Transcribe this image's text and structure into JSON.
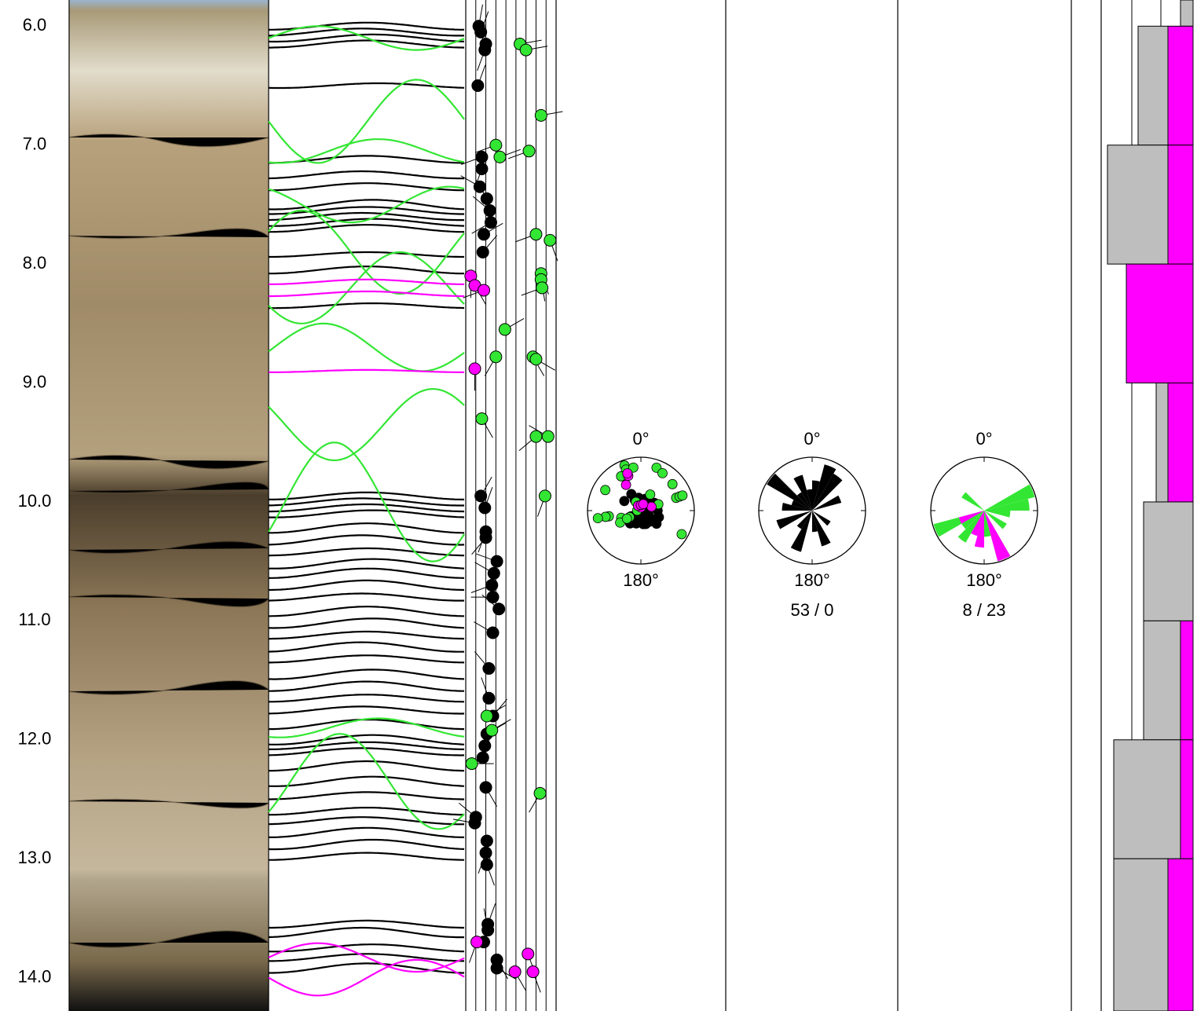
{
  "depth_axis": {
    "range": [
      5.78,
      14.28
    ],
    "ticks": [
      {
        "value": 6,
        "label": "6.0"
      },
      {
        "value": 7,
        "label": "7.0"
      },
      {
        "value": 8,
        "label": "8.0"
      },
      {
        "value": 9,
        "label": "9.0"
      },
      {
        "value": 10,
        "label": "10.0"
      },
      {
        "value": 11,
        "label": "11.0"
      },
      {
        "value": 12,
        "label": "12.0"
      },
      {
        "value": 13,
        "label": "13.0"
      },
      {
        "value": 14,
        "label": "14.0"
      }
    ]
  },
  "surfaces": [
    {
      "color": "#000000",
      "depths": [
        6.0,
        6.05,
        6.1,
        6.15,
        6.5,
        7.12,
        7.25,
        7.35,
        7.5,
        7.55,
        7.6,
        7.65,
        7.7,
        7.92,
        8.05,
        8.35,
        9.95,
        10.0,
        10.05,
        10.1,
        10.22,
        10.32,
        10.42,
        10.52,
        10.6,
        10.7,
        10.8,
        10.92,
        11.02,
        11.12,
        11.22,
        11.32,
        11.45,
        11.55,
        11.65,
        11.75,
        11.87,
        12.0,
        12.05,
        12.1,
        12.22,
        12.35,
        12.47,
        12.6,
        12.68,
        12.78,
        12.88,
        12.98,
        13.55,
        13.62,
        13.75,
        13.83,
        13.92
      ],
      "amplitudes": [
        0.03,
        0.03,
        0.03,
        0.03,
        0.02,
        0.03,
        0.03,
        0.03,
        0.04,
        0.03,
        0.03,
        0.03,
        0.03,
        0.02,
        0.03,
        0.02,
        0.03,
        0.03,
        0.03,
        0.03,
        0.04,
        0.04,
        0.03,
        0.04,
        0.04,
        0.04,
        0.03,
        0.04,
        0.04,
        0.03,
        0.04,
        0.03,
        0.04,
        0.04,
        0.03,
        0.03,
        0.04,
        0.04,
        0.03,
        0.03,
        0.04,
        0.04,
        0.03,
        0.03,
        0.03,
        0.04,
        0.04,
        0.03,
        0.03,
        0.04,
        0.03,
        0.03,
        0.04
      ],
      "azimuths": [
        180,
        170,
        190,
        180,
        200,
        180,
        170,
        180,
        190,
        180,
        170,
        190,
        180,
        180,
        180,
        190,
        180,
        170,
        180,
        190,
        180,
        170,
        180,
        190,
        180,
        180,
        170,
        180,
        190,
        180,
        170,
        180,
        190,
        180,
        180,
        170,
        180,
        190,
        180,
        170,
        180,
        190,
        180,
        180,
        170,
        180,
        190,
        180,
        180,
        170,
        190,
        180,
        180
      ]
    },
    {
      "color": "#33e633",
      "depths": [
        6.1,
        6.8,
        7.05,
        7.5,
        7.9,
        8.2,
        8.7,
        9.35,
        10.0,
        11.9,
        12.35
      ],
      "amplitudes": [
        0.1,
        0.35,
        0.1,
        0.15,
        0.35,
        0.3,
        0.2,
        0.3,
        0.5,
        0.08,
        0.4
      ],
      "azimuths": [
        90,
        270,
        200,
        330,
        60,
        240,
        100,
        300,
        120,
        200,
        130
      ]
    },
    {
      "color": "#ff00ff",
      "depths": [
        8.15,
        8.25,
        8.9,
        13.83,
        14.0
      ],
      "amplitudes": [
        0.02,
        0.02,
        0.01,
        0.12,
        0.15
      ],
      "azimuths": [
        180,
        180,
        180,
        90,
        270
      ]
    }
  ],
  "tadpole_axis": {
    "xlim": [
      0,
      90
    ],
    "ticks": [
      0,
      10,
      20,
      30,
      40,
      50,
      60,
      70,
      80,
      90
    ]
  },
  "tadpoles": [
    {
      "color": "#000000",
      "depths": [
        6.0,
        6.05,
        6.15,
        6.2,
        6.5,
        7.1,
        7.2,
        7.35,
        7.45,
        7.55,
        7.65,
        7.75,
        7.9,
        9.95,
        10.05,
        10.25,
        10.3,
        10.5,
        10.6,
        10.7,
        10.8,
        10.9,
        11.1,
        11.4,
        11.65,
        11.8,
        11.95,
        12.05,
        12.15,
        12.4,
        12.65,
        12.7,
        12.85,
        12.95,
        13.05,
        13.55,
        13.6,
        13.7,
        13.85,
        13.92
      ],
      "dips": [
        13,
        15,
        20,
        19,
        12,
        16,
        16,
        14,
        21,
        24,
        25,
        18,
        17,
        15,
        19,
        20,
        20,
        31,
        28,
        26,
        27,
        33,
        27,
        23,
        23,
        27,
        21,
        19,
        17,
        20,
        10,
        9,
        21,
        20,
        21,
        22,
        22,
        18,
        31,
        31
      ],
      "azimuths": [
        10,
        20,
        330,
        200,
        20,
        250,
        200,
        300,
        330,
        310,
        240,
        60,
        40,
        30,
        20,
        200,
        220,
        290,
        300,
        250,
        270,
        310,
        300,
        320,
        340,
        40,
        60,
        30,
        20,
        150,
        310,
        280,
        170,
        200,
        160,
        20,
        350,
        10,
        150,
        120
      ]
    },
    {
      "color": "#33e633",
      "depths": [
        6.15,
        6.2,
        6.75,
        7.0,
        7.05,
        7.1,
        7.75,
        7.8,
        8.08,
        8.13,
        8.2,
        8.55,
        8.78,
        8.78,
        8.8,
        9.3,
        9.45,
        9.45,
        9.95,
        11.8,
        11.92,
        12.2,
        12.45
      ],
      "dips": [
        54,
        60,
        75,
        30,
        63,
        34,
        70,
        84,
        75,
        75,
        76,
        39,
        30,
        67,
        70,
        16,
        70,
        82,
        79,
        21,
        26,
        6,
        74
      ],
      "azimuths": [
        80,
        80,
        80,
        250,
        250,
        70,
        250,
        160,
        160,
        170,
        250,
        60,
        210,
        150,
        120,
        150,
        230,
        300,
        200,
        60,
        60,
        90,
        210
      ]
    },
    {
      "color": "#ff00ff",
      "depths": [
        8.1,
        8.18,
        8.22,
        8.88,
        13.7,
        13.8,
        13.95,
        13.95
      ],
      "dips": [
        5,
        9,
        18,
        9,
        11,
        62,
        49,
        67
      ],
      "azimuths": [
        180,
        150,
        250,
        180,
        200,
        160,
        150,
        160
      ]
    }
  ],
  "stereonets": [
    {
      "north": "0°",
      "south": "180°"
    },
    {
      "north": "0°",
      "south": "180°",
      "caption": "53 / 0"
    },
    {
      "north": "0°",
      "south": "180°",
      "caption": "8 / 23"
    }
  ],
  "histogram": {
    "xlim": [
      0,
      117
    ],
    "bins": [
      5.78,
      6,
      7,
      8,
      9,
      10,
      11,
      12,
      13,
      14.28
    ],
    "series": [
      {
        "color": "#ff00ff",
        "values": [
          0,
          32,
          32,
          85,
          32,
          0,
          16,
          16,
          32
        ]
      },
      {
        "color": "#bebebe",
        "values": [
          16,
          38,
          77,
          0,
          15,
          63,
          47,
          85,
          69
        ]
      }
    ]
  }
}
